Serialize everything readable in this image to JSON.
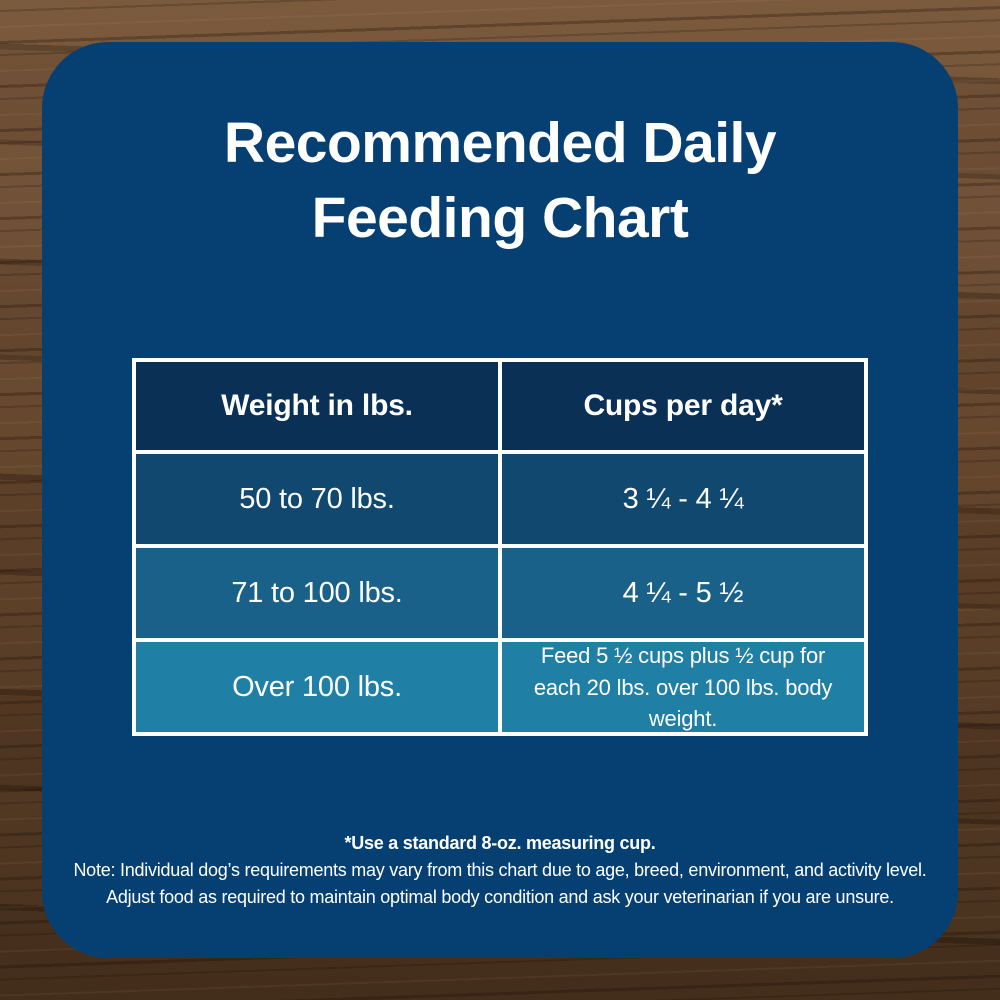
{
  "header": {
    "title_line1": "Recommended Daily",
    "title_line2": "Feeding Chart"
  },
  "table": {
    "col1_header": "Weight in lbs.",
    "col2_header": "Cups per day*",
    "rows": [
      {
        "weight": "50 to 70 lbs.",
        "cups": "3 ¼ - 4 ¼"
      },
      {
        "weight": "71 to 100 lbs.",
        "cups": "4 ¼ - 5 ½"
      },
      {
        "weight": "Over 100 lbs.",
        "cups": "Feed 5 ½ cups plus ½ cup for each 20 lbs. over 100 lbs. body weight."
      }
    ]
  },
  "footnotes": {
    "line1": "*Use a standard 8-oz. measuring cup.",
    "line2": "Note: Individual dog’s requirements may vary from this chart due to age, breed, environment, and activity level.",
    "line3": "Adjust food as required to maintain optimal body condition and ask your veterinarian if you are unsure."
  },
  "colors": {
    "card_background": "#064073",
    "header_cell": "#0a3056",
    "row1": "#11486f",
    "row2": "#1a6189",
    "row3": "#1f7fa4",
    "table_border": "#ffffff",
    "text": "#ffffff",
    "wood_base": "#5f422a"
  },
  "chart_data": {
    "type": "table",
    "title": "Recommended Daily Feeding Chart",
    "columns": [
      "Weight in lbs.",
      "Cups per day*"
    ],
    "rows": [
      [
        "50 to 70 lbs.",
        "3 ¼ - 4 ¼"
      ],
      [
        "71 to 100 lbs.",
        "4 ¼ - 5 ½"
      ],
      [
        "Over 100 lbs.",
        "Feed 5 ½ cups plus ½ cup for each 20 lbs. over 100 lbs. body weight."
      ]
    ],
    "footnotes": [
      "*Use a standard 8-oz. measuring cup.",
      "Note: Individual dog’s requirements may vary from this chart due to age, breed, environment, and activity level.",
      "Adjust food as required to maintain optimal body condition and ask your veterinarian if you are unsure."
    ]
  }
}
